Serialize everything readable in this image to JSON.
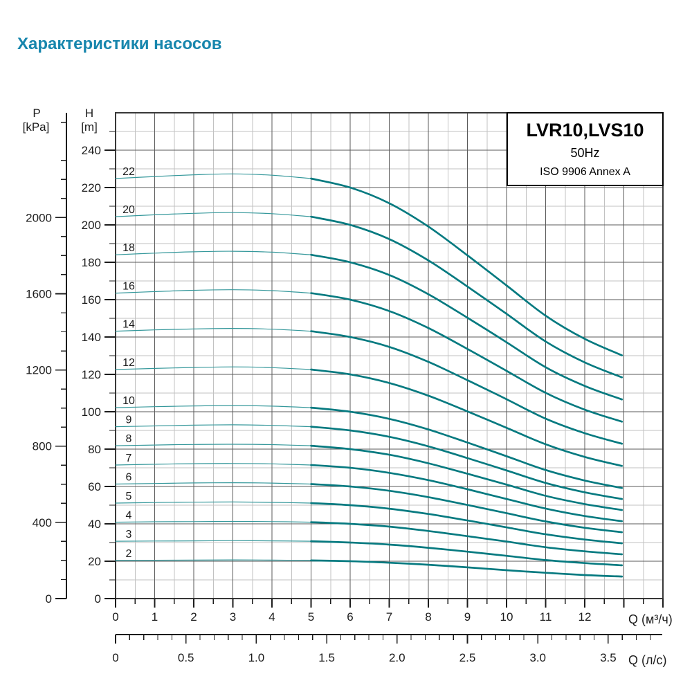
{
  "page": {
    "title": "Характеристики насосов"
  },
  "theme": {
    "title_color": "#1786ad",
    "curve_color": "#067a80",
    "curve_color_light": "#35989b",
    "grid_major": "#5a5a5a",
    "grid_minor": "#c2c2c2",
    "border_color": "#383838",
    "axis_color": "#1c1c1c"
  },
  "legend": {
    "model": "LVR10,LVS10",
    "frequency": "50Hz",
    "standard": "ISO 9906 Annex A"
  },
  "axes": {
    "pressure": {
      "symbol": "P",
      "unit": "[kPa]",
      "tick_labels": [
        2000,
        1600,
        1200,
        800,
        400,
        0
      ]
    },
    "head": {
      "symbol": "H",
      "unit": "[m]",
      "tick_labels": [
        240,
        220,
        200,
        180,
        160,
        140,
        120,
        100,
        80,
        60,
        40,
        20,
        0
      ]
    },
    "flow_m3h": {
      "unit_label": "Q (м³/ч)",
      "tick_labels": [
        "0",
        "1",
        "2",
        "3",
        "4",
        "5",
        "6",
        "7",
        "8",
        "9",
        "10",
        "11",
        "12"
      ]
    },
    "flow_ls": {
      "unit_label": "Q (л/с)",
      "tick_labels": [
        "0",
        "0.5",
        "1.0",
        "1.5",
        "2.0",
        "2.5",
        "3.0",
        "3.5"
      ]
    }
  },
  "chart_data": {
    "type": "line",
    "title": "LVR10,LVS10 50Hz ISO 9906 Annex A",
    "xlabel": "Q (м³/ч)",
    "x2label": "Q (л/с)",
    "ylabel": "H [m]",
    "y2label": "P [kPa]",
    "xlim": [
      0,
      14
    ],
    "ylim": [
      0,
      260
    ],
    "grid": "on",
    "x_q_m3h": [
      0,
      1,
      2,
      3,
      4,
      5,
      6,
      7,
      8,
      9,
      10,
      11,
      12,
      12.95
    ],
    "series": [
      {
        "name": "2",
        "stages": 2,
        "head_m": [
          20.4,
          20.5,
          20.6,
          20.7,
          20.6,
          20.4,
          20.0,
          19.2,
          18.1,
          16.7,
          15.2,
          13.8,
          12.6,
          11.8
        ]
      },
      {
        "name": "3",
        "stages": 3,
        "head_m": [
          30.7,
          30.8,
          30.9,
          31.0,
          30.9,
          30.7,
          30.0,
          28.9,
          27.2,
          25.1,
          22.9,
          20.6,
          19.0,
          17.8
        ]
      },
      {
        "name": "4",
        "stages": 4,
        "head_m": [
          40.9,
          41.1,
          41.2,
          41.3,
          41.2,
          40.9,
          40.0,
          38.5,
          36.2,
          33.4,
          30.5,
          27.5,
          25.3,
          23.7
        ]
      },
      {
        "name": "5",
        "stages": 5,
        "head_m": [
          51.1,
          51.4,
          51.6,
          51.7,
          51.5,
          51.1,
          50.0,
          48.1,
          45.3,
          41.8,
          38.1,
          34.4,
          31.6,
          29.6
        ]
      },
      {
        "name": "6",
        "stages": 6,
        "head_m": [
          61.3,
          61.6,
          61.9,
          62.0,
          61.8,
          61.3,
          60.0,
          57.7,
          54.3,
          50.1,
          45.7,
          41.3,
          37.9,
          35.5
        ]
      },
      {
        "name": "7",
        "stages": 7,
        "head_m": [
          71.5,
          71.9,
          72.2,
          72.3,
          72.1,
          71.5,
          70.0,
          67.3,
          63.4,
          58.5,
          53.3,
          48.2,
          44.2,
          41.4
        ]
      },
      {
        "name": "8",
        "stages": 8,
        "head_m": [
          81.8,
          82.2,
          82.5,
          82.6,
          82.4,
          81.8,
          80.0,
          77.0,
          72.4,
          66.8,
          61.0,
          55.0,
          50.6,
          47.4
        ]
      },
      {
        "name": "9",
        "stages": 9,
        "head_m": [
          92.0,
          92.4,
          92.8,
          93.0,
          92.7,
          92.0,
          90.0,
          86.6,
          81.5,
          75.2,
          68.6,
          61.9,
          56.9,
          53.3
        ]
      },
      {
        "name": "10",
        "stages": 10,
        "head_m": [
          102.2,
          102.7,
          103.1,
          103.3,
          103.0,
          102.2,
          100.0,
          96.2,
          90.5,
          83.5,
          76.2,
          68.8,
          63.2,
          59.2
        ]
      },
      {
        "name": "12",
        "stages": 12,
        "head_m": [
          122.6,
          123.2,
          123.7,
          124.0,
          123.6,
          122.6,
          120.0,
          115.4,
          108.6,
          100.2,
          91.4,
          82.6,
          75.8,
          71.0
        ]
      },
      {
        "name": "14",
        "stages": 14,
        "head_m": [
          143.1,
          143.8,
          144.3,
          144.6,
          144.2,
          143.1,
          140.0,
          134.7,
          126.7,
          116.9,
          106.7,
          96.3,
          88.5,
          82.9
        ]
      },
      {
        "name": "16",
        "stages": 16,
        "head_m": [
          163.5,
          164.3,
          165.0,
          165.3,
          164.8,
          163.5,
          160.0,
          153.9,
          144.8,
          133.6,
          121.9,
          110.1,
          101.1,
          94.7
        ]
      },
      {
        "name": "18",
        "stages": 18,
        "head_m": [
          184.0,
          184.9,
          185.6,
          185.9,
          185.4,
          184.0,
          180.0,
          173.2,
          162.9,
          150.3,
          137.2,
          123.8,
          113.8,
          106.6
        ]
      },
      {
        "name": "20",
        "stages": 20,
        "head_m": [
          204.4,
          205.4,
          206.2,
          206.6,
          206.0,
          204.4,
          200.0,
          192.4,
          181.0,
          167.0,
          152.4,
          137.6,
          126.4,
          118.4
        ]
      },
      {
        "name": "22",
        "stages": 22,
        "head_m": [
          224.8,
          225.9,
          226.8,
          227.3,
          226.6,
          224.8,
          220.0,
          211.6,
          199.1,
          183.7,
          167.6,
          151.4,
          139.0,
          130.2
        ]
      }
    ]
  }
}
